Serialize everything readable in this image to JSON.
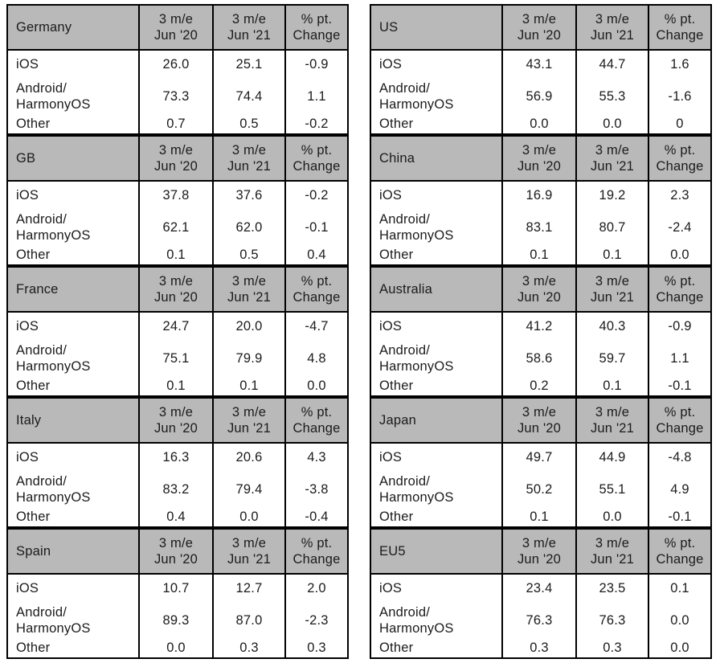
{
  "labels": {
    "col_2020": "3 m/e\nJun '20",
    "col_2021": "3 m/e\nJun '21",
    "col_change": "% pt.\nChange"
  },
  "colors": {
    "header_bg": "#b9b9b9",
    "border": "#000000",
    "text": "#1b1b1b"
  },
  "tables": [
    {
      "country": "Germany",
      "rows": [
        {
          "os": "iOS",
          "v2020": "26.0",
          "v2021": "25.1",
          "change": "-0.9"
        },
        {
          "os": "Android/\nHarmonyOS",
          "v2020": "73.3",
          "v2021": "74.4",
          "change": "1.1"
        },
        {
          "os": "Other",
          "v2020": "0.7",
          "v2021": "0.5",
          "change": "-0.2"
        }
      ]
    },
    {
      "country": "GB",
      "rows": [
        {
          "os": "iOS",
          "v2020": "37.8",
          "v2021": "37.6",
          "change": "-0.2"
        },
        {
          "os": "Android/\nHarmonyOS",
          "v2020": "62.1",
          "v2021": "62.0",
          "change": "-0.1"
        },
        {
          "os": "Other",
          "v2020": "0.1",
          "v2021": "0.5",
          "change": "0.4"
        }
      ]
    },
    {
      "country": "France",
      "rows": [
        {
          "os": "iOS",
          "v2020": "24.7",
          "v2021": "20.0",
          "change": "-4.7"
        },
        {
          "os": "Android/\nHarmonyOS",
          "v2020": "75.1",
          "v2021": "79.9",
          "change": "4.8"
        },
        {
          "os": "Other",
          "v2020": "0.1",
          "v2021": "0.1",
          "change": "0.0"
        }
      ]
    },
    {
      "country": "Italy",
      "rows": [
        {
          "os": "iOS",
          "v2020": "16.3",
          "v2021": "20.6",
          "change": "4.3"
        },
        {
          "os": "Android/\nHarmonyOS",
          "v2020": "83.2",
          "v2021": "79.4",
          "change": "-3.8"
        },
        {
          "os": "Other",
          "v2020": "0.4",
          "v2021": "0.0",
          "change": "-0.4"
        }
      ]
    },
    {
      "country": "Spain",
      "rows": [
        {
          "os": "iOS",
          "v2020": "10.7",
          "v2021": "12.7",
          "change": "2.0"
        },
        {
          "os": "Android/\nHarmonyOS",
          "v2020": "89.3",
          "v2021": "87.0",
          "change": "-2.3"
        },
        {
          "os": "Other",
          "v2020": "0.0",
          "v2021": "0.3",
          "change": "0.3"
        }
      ]
    },
    {
      "country": "US",
      "rows": [
        {
          "os": "iOS",
          "v2020": "43.1",
          "v2021": "44.7",
          "change": "1.6"
        },
        {
          "os": "Android/\nHarmonyOS",
          "v2020": "56.9",
          "v2021": "55.3",
          "change": "-1.6"
        },
        {
          "os": "Other",
          "v2020": "0.0",
          "v2021": "0.0",
          "change": "0"
        }
      ]
    },
    {
      "country": "China",
      "rows": [
        {
          "os": "iOS",
          "v2020": "16.9",
          "v2021": "19.2",
          "change": "2.3"
        },
        {
          "os": "Android/\nHarmonyOS",
          "v2020": "83.1",
          "v2021": "80.7",
          "change": "-2.4"
        },
        {
          "os": "Other",
          "v2020": "0.1",
          "v2021": "0.1",
          "change": "0.0"
        }
      ]
    },
    {
      "country": "Australia",
      "rows": [
        {
          "os": "iOS",
          "v2020": "41.2",
          "v2021": "40.3",
          "change": "-0.9"
        },
        {
          "os": "Android/\nHarmonyOS",
          "v2020": "58.6",
          "v2021": "59.7",
          "change": "1.1"
        },
        {
          "os": "Other",
          "v2020": "0.2",
          "v2021": "0.1",
          "change": "-0.1"
        }
      ]
    },
    {
      "country": "Japan",
      "rows": [
        {
          "os": "iOS",
          "v2020": "49.7",
          "v2021": "44.9",
          "change": "-4.8"
        },
        {
          "os": "Android/\nHarmonyOS",
          "v2020": "50.2",
          "v2021": "55.1",
          "change": "4.9"
        },
        {
          "os": "Other",
          "v2020": "0.1",
          "v2021": "0.0",
          "change": "-0.1"
        }
      ]
    },
    {
      "country": "EU5",
      "rows": [
        {
          "os": "iOS",
          "v2020": "23.4",
          "v2021": "23.5",
          "change": "0.1"
        },
        {
          "os": "Android/\nHarmonyOS",
          "v2020": "76.3",
          "v2021": "76.3",
          "change": "0.0"
        },
        {
          "os": "Other",
          "v2020": "0.3",
          "v2021": "0.3",
          "change": "0.0"
        }
      ]
    }
  ],
  "chart_data": [
    {
      "type": "table",
      "title": "Germany",
      "columns": [
        "",
        "3 m/e Jun '20",
        "3 m/e Jun '21",
        "% pt. Change"
      ],
      "rows": [
        [
          "iOS",
          26.0,
          25.1,
          -0.9
        ],
        [
          "Android/HarmonyOS",
          73.3,
          74.4,
          1.1
        ],
        [
          "Other",
          0.7,
          0.5,
          -0.2
        ]
      ]
    },
    {
      "type": "table",
      "title": "GB",
      "columns": [
        "",
        "3 m/e Jun '20",
        "3 m/e Jun '21",
        "% pt. Change"
      ],
      "rows": [
        [
          "iOS",
          37.8,
          37.6,
          -0.2
        ],
        [
          "Android/HarmonyOS",
          62.1,
          62.0,
          -0.1
        ],
        [
          "Other",
          0.1,
          0.5,
          0.4
        ]
      ]
    },
    {
      "type": "table",
      "title": "France",
      "columns": [
        "",
        "3 m/e Jun '20",
        "3 m/e Jun '21",
        "% pt. Change"
      ],
      "rows": [
        [
          "iOS",
          24.7,
          20.0,
          -4.7
        ],
        [
          "Android/HarmonyOS",
          75.1,
          79.9,
          4.8
        ],
        [
          "Other",
          0.1,
          0.1,
          0.0
        ]
      ]
    },
    {
      "type": "table",
      "title": "Italy",
      "columns": [
        "",
        "3 m/e Jun '20",
        "3 m/e Jun '21",
        "% pt. Change"
      ],
      "rows": [
        [
          "iOS",
          16.3,
          20.6,
          4.3
        ],
        [
          "Android/HarmonyOS",
          83.2,
          79.4,
          -3.8
        ],
        [
          "Other",
          0.4,
          0.0,
          -0.4
        ]
      ]
    },
    {
      "type": "table",
      "title": "Spain",
      "columns": [
        "",
        "3 m/e Jun '20",
        "3 m/e Jun '21",
        "% pt. Change"
      ],
      "rows": [
        [
          "iOS",
          10.7,
          12.7,
          2.0
        ],
        [
          "Android/HarmonyOS",
          89.3,
          87.0,
          -2.3
        ],
        [
          "Other",
          0.0,
          0.3,
          0.3
        ]
      ]
    },
    {
      "type": "table",
      "title": "US",
      "columns": [
        "",
        "3 m/e Jun '20",
        "3 m/e Jun '21",
        "% pt. Change"
      ],
      "rows": [
        [
          "iOS",
          43.1,
          44.7,
          1.6
        ],
        [
          "Android/HarmonyOS",
          56.9,
          55.3,
          -1.6
        ],
        [
          "Other",
          0.0,
          0.0,
          0
        ]
      ]
    },
    {
      "type": "table",
      "title": "China",
      "columns": [
        "",
        "3 m/e Jun '20",
        "3 m/e Jun '21",
        "% pt. Change"
      ],
      "rows": [
        [
          "iOS",
          16.9,
          19.2,
          2.3
        ],
        [
          "Android/HarmonyOS",
          83.1,
          80.7,
          -2.4
        ],
        [
          "Other",
          0.1,
          0.1,
          0.0
        ]
      ]
    },
    {
      "type": "table",
      "title": "Australia",
      "columns": [
        "",
        "3 m/e Jun '20",
        "3 m/e Jun '21",
        "% pt. Change"
      ],
      "rows": [
        [
          "iOS",
          41.2,
          40.3,
          -0.9
        ],
        [
          "Android/HarmonyOS",
          58.6,
          59.7,
          1.1
        ],
        [
          "Other",
          0.2,
          0.1,
          -0.1
        ]
      ]
    },
    {
      "type": "table",
      "title": "Japan",
      "columns": [
        "",
        "3 m/e Jun '20",
        "3 m/e Jun '21",
        "% pt. Change"
      ],
      "rows": [
        [
          "iOS",
          49.7,
          44.9,
          -4.8
        ],
        [
          "Android/HarmonyOS",
          50.2,
          55.1,
          4.9
        ],
        [
          "Other",
          0.1,
          0.0,
          -0.1
        ]
      ]
    },
    {
      "type": "table",
      "title": "EU5",
      "columns": [
        "",
        "3 m/e Jun '20",
        "3 m/e Jun '21",
        "% pt. Change"
      ],
      "rows": [
        [
          "iOS",
          23.4,
          23.5,
          0.1
        ],
        [
          "Android/HarmonyOS",
          76.3,
          76.3,
          0.0
        ],
        [
          "Other",
          0.3,
          0.3,
          0.0
        ]
      ]
    }
  ]
}
